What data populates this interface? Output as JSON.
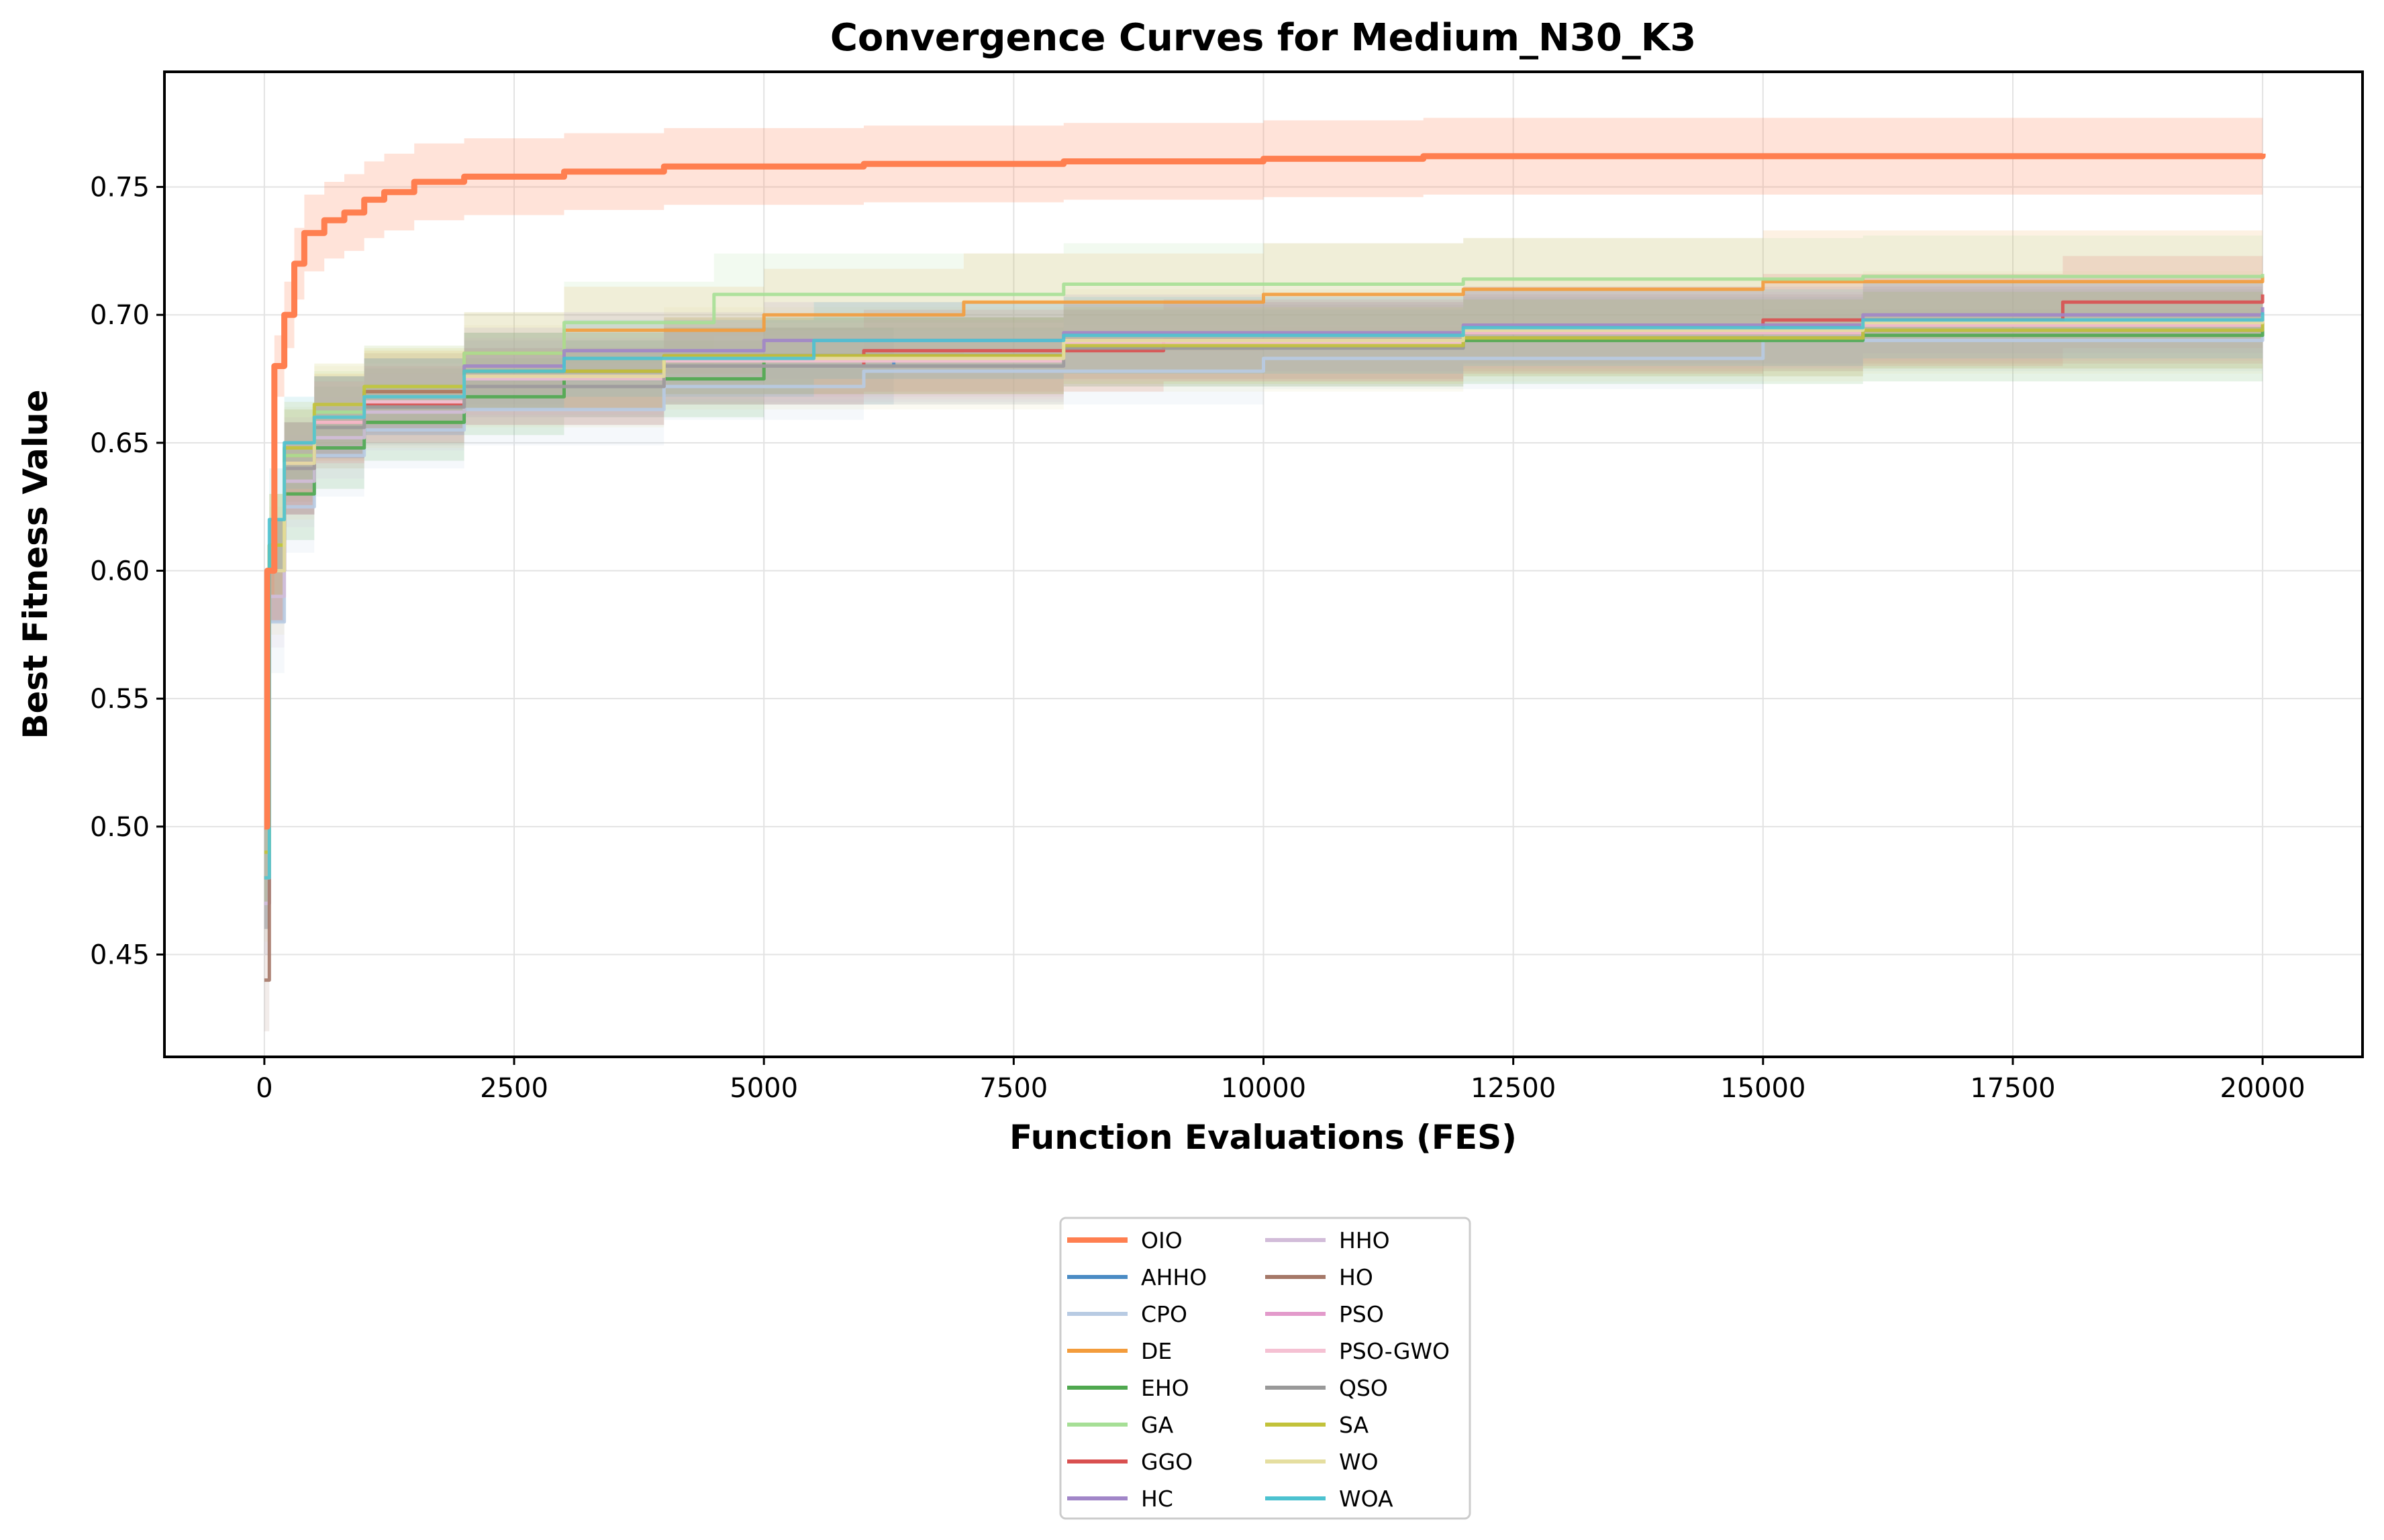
{
  "chart_data": {
    "type": "line",
    "title": "Convergence Curves for Medium_N30_K3",
    "xlabel": "Function Evaluations (FES)",
    "ylabel": "Best Fitness Value",
    "xlim": [
      -1000,
      21000
    ],
    "ylim": [
      0.41,
      0.795
    ],
    "xticks": [
      0,
      2500,
      5000,
      7500,
      10000,
      12500,
      15000,
      17500,
      20000
    ],
    "xtick_labels": [
      "0",
      "2500",
      "5000",
      "7500",
      "10000",
      "12500",
      "15000",
      "17500",
      "20000"
    ],
    "yticks": [
      0.45,
      0.5,
      0.55,
      0.6,
      0.65,
      0.7,
      0.75
    ],
    "ytick_labels": [
      "0.45",
      "0.50",
      "0.55",
      "0.60",
      "0.65",
      "0.70",
      "0.75"
    ],
    "grid": true,
    "legend_position": "below-center",
    "legend_columns": 2,
    "series": [
      {
        "name": "OIO",
        "color": "#ff7f50",
        "x": [
          0,
          30,
          100,
          200,
          300,
          400,
          600,
          800,
          1000,
          1200,
          1500,
          2000,
          3000,
          4000,
          6000,
          8000,
          10000,
          11600,
          15000,
          20000
        ],
        "values": [
          0.5,
          0.6,
          0.68,
          0.7,
          0.72,
          0.732,
          0.737,
          0.74,
          0.745,
          0.748,
          0.752,
          0.754,
          0.756,
          0.758,
          0.759,
          0.76,
          0.761,
          0.762,
          0.762,
          0.763
        ],
        "std": [
          0.0,
          0.01,
          0.012,
          0.013,
          0.014,
          0.015,
          0.015,
          0.015,
          0.015,
          0.015,
          0.015,
          0.015,
          0.015,
          0.015,
          0.015,
          0.015,
          0.015,
          0.015,
          0.015,
          0.015
        ]
      },
      {
        "name": "AHHO",
        "color": "#4a8bc4",
        "x": [
          0,
          50,
          200,
          500,
          1000,
          2000,
          4000,
          6300
        ],
        "values": [
          0.48,
          0.6,
          0.64,
          0.66,
          0.668,
          0.675,
          0.68,
          0.683
        ],
        "std": [
          0.02,
          0.02,
          0.018,
          0.016,
          0.015,
          0.015,
          0.015,
          0.015
        ]
      },
      {
        "name": "CPO",
        "color": "#b8cbe3",
        "x": [
          0,
          50,
          200,
          500,
          1000,
          2000,
          4000,
          6000,
          10000,
          15000,
          20000
        ],
        "values": [
          0.47,
          0.58,
          0.625,
          0.645,
          0.655,
          0.663,
          0.672,
          0.678,
          0.683,
          0.69,
          0.695
        ],
        "std": [
          0.02,
          0.02,
          0.018,
          0.016,
          0.015,
          0.014,
          0.013,
          0.013,
          0.012,
          0.012,
          0.012
        ]
      },
      {
        "name": "DE",
        "color": "#f39c3c",
        "x": [
          0,
          50,
          200,
          500,
          1000,
          2000,
          3000,
          5000,
          7000,
          10000,
          12000,
          15000,
          20000
        ],
        "values": [
          0.48,
          0.61,
          0.645,
          0.66,
          0.67,
          0.685,
          0.694,
          0.7,
          0.705,
          0.708,
          0.71,
          0.713,
          0.715
        ],
        "std": [
          0.02,
          0.02,
          0.018,
          0.017,
          0.016,
          0.016,
          0.017,
          0.018,
          0.019,
          0.02,
          0.02,
          0.02,
          0.02
        ]
      },
      {
        "name": "EHO",
        "color": "#4fa84f",
        "x": [
          0,
          50,
          200,
          500,
          1000,
          2000,
          3000,
          5000,
          8000,
          12000,
          16000,
          20000
        ],
        "values": [
          0.48,
          0.6,
          0.63,
          0.648,
          0.658,
          0.668,
          0.675,
          0.684,
          0.688,
          0.69,
          0.692,
          0.694
        ],
        "std": [
          0.02,
          0.02,
          0.018,
          0.016,
          0.015,
          0.015,
          0.015,
          0.015,
          0.016,
          0.017,
          0.018,
          0.018
        ]
      },
      {
        "name": "GA",
        "color": "#a6df96",
        "x": [
          0,
          50,
          200,
          500,
          1000,
          2000,
          3000,
          4500,
          8000,
          12000,
          16000,
          20000
        ],
        "values": [
          0.48,
          0.61,
          0.645,
          0.662,
          0.672,
          0.685,
          0.697,
          0.708,
          0.712,
          0.714,
          0.715,
          0.716
        ],
        "std": [
          0.02,
          0.02,
          0.018,
          0.016,
          0.016,
          0.016,
          0.016,
          0.016,
          0.016,
          0.016,
          0.016,
          0.016
        ]
      },
      {
        "name": "GGO",
        "color": "#d95050",
        "x": [
          0,
          50,
          200,
          500,
          1000,
          2000,
          4000,
          6000,
          9000,
          12000,
          15000,
          18000,
          20000
        ],
        "values": [
          0.48,
          0.6,
          0.64,
          0.658,
          0.665,
          0.672,
          0.68,
          0.686,
          0.69,
          0.694,
          0.698,
          0.705,
          0.708
        ],
        "std": [
          0.02,
          0.02,
          0.018,
          0.016,
          0.015,
          0.015,
          0.015,
          0.016,
          0.016,
          0.017,
          0.018,
          0.018,
          0.018
        ]
      },
      {
        "name": "HC",
        "color": "#a186c8",
        "x": [
          0,
          50,
          200,
          500,
          1000,
          2000,
          3000,
          5000,
          8000,
          12000,
          16000,
          20000
        ],
        "values": [
          0.48,
          0.6,
          0.64,
          0.66,
          0.668,
          0.68,
          0.686,
          0.69,
          0.693,
          0.696,
          0.7,
          0.703
        ],
        "std": [
          0.02,
          0.02,
          0.018,
          0.016,
          0.015,
          0.015,
          0.015,
          0.015,
          0.015,
          0.015,
          0.015,
          0.015
        ]
      },
      {
        "name": "HHO",
        "color": "#d2bcd9",
        "x": [
          0,
          50,
          200,
          500,
          1000,
          2000,
          4000,
          8000,
          12000,
          16000,
          20000
        ],
        "values": [
          0.47,
          0.59,
          0.635,
          0.652,
          0.662,
          0.672,
          0.68,
          0.688,
          0.693,
          0.697,
          0.7
        ],
        "std": [
          0.02,
          0.02,
          0.018,
          0.016,
          0.015,
          0.015,
          0.014,
          0.014,
          0.014,
          0.014,
          0.014
        ]
      },
      {
        "name": "HO",
        "color": "#a57868",
        "x": [
          0,
          50,
          200,
          500,
          1000,
          2000,
          4000,
          8000,
          12000,
          16000,
          20000
        ],
        "values": [
          0.44,
          0.6,
          0.64,
          0.66,
          0.67,
          0.678,
          0.684,
          0.69,
          0.693,
          0.696,
          0.698
        ],
        "std": [
          0.02,
          0.02,
          0.018,
          0.016,
          0.015,
          0.015,
          0.015,
          0.015,
          0.015,
          0.015,
          0.015
        ]
      },
      {
        "name": "PSO",
        "color": "#e39acb",
        "x": [
          0,
          50,
          200,
          500,
          1000,
          2000,
          4000,
          8000,
          12000,
          16000,
          20000
        ],
        "values": [
          0.48,
          0.6,
          0.642,
          0.66,
          0.668,
          0.676,
          0.683,
          0.69,
          0.694,
          0.697,
          0.7
        ],
        "std": [
          0.02,
          0.02,
          0.018,
          0.016,
          0.015,
          0.015,
          0.015,
          0.015,
          0.015,
          0.015,
          0.015
        ]
      },
      {
        "name": "PSO-GWO",
        "color": "#f5c1d3",
        "x": [
          0,
          50,
          200,
          500,
          1000,
          2000,
          4000,
          8000,
          12000,
          16000,
          20000
        ],
        "values": [
          0.48,
          0.6,
          0.64,
          0.658,
          0.666,
          0.675,
          0.682,
          0.689,
          0.693,
          0.696,
          0.698
        ],
        "std": [
          0.02,
          0.02,
          0.018,
          0.016,
          0.015,
          0.015,
          0.015,
          0.015,
          0.015,
          0.015,
          0.015
        ]
      },
      {
        "name": "QSO",
        "color": "#999999",
        "x": [
          0,
          50,
          200,
          500,
          1000,
          2000,
          4000,
          8000,
          12000,
          16000,
          20000
        ],
        "values": [
          0.48,
          0.6,
          0.64,
          0.656,
          0.664,
          0.672,
          0.68,
          0.687,
          0.691,
          0.694,
          0.696
        ],
        "std": [
          0.02,
          0.02,
          0.018,
          0.016,
          0.015,
          0.015,
          0.015,
          0.015,
          0.015,
          0.015,
          0.015
        ]
      },
      {
        "name": "SA",
        "color": "#c2c23a",
        "x": [
          0,
          50,
          200,
          500,
          1000,
          2000,
          4000,
          8000,
          12000,
          16000,
          20000
        ],
        "values": [
          0.49,
          0.61,
          0.648,
          0.665,
          0.672,
          0.678,
          0.684,
          0.688,
          0.691,
          0.694,
          0.697
        ],
        "std": [
          0.02,
          0.02,
          0.018,
          0.016,
          0.015,
          0.015,
          0.015,
          0.015,
          0.015,
          0.015,
          0.015
        ]
      },
      {
        "name": "WO",
        "color": "#e5dea0",
        "x": [
          0,
          50,
          200,
          500,
          1000,
          2000,
          4000,
          8000,
          12000,
          16000,
          20000
        ],
        "values": [
          0.48,
          0.6,
          0.642,
          0.66,
          0.668,
          0.676,
          0.683,
          0.69,
          0.694,
          0.697,
          0.7
        ],
        "std": [
          0.025,
          0.025,
          0.022,
          0.02,
          0.02,
          0.02,
          0.02,
          0.02,
          0.02,
          0.02,
          0.02
        ]
      },
      {
        "name": "WOA",
        "color": "#4cc2d0",
        "x": [
          0,
          50,
          200,
          500,
          1000,
          2000,
          3000,
          5500,
          8000,
          12000,
          16000,
          20000
        ],
        "values": [
          0.48,
          0.62,
          0.65,
          0.66,
          0.668,
          0.678,
          0.683,
          0.69,
          0.692,
          0.695,
          0.698,
          0.701
        ],
        "std": [
          0.02,
          0.02,
          0.018,
          0.016,
          0.015,
          0.015,
          0.015,
          0.015,
          0.015,
          0.015,
          0.015,
          0.015
        ]
      }
    ]
  }
}
